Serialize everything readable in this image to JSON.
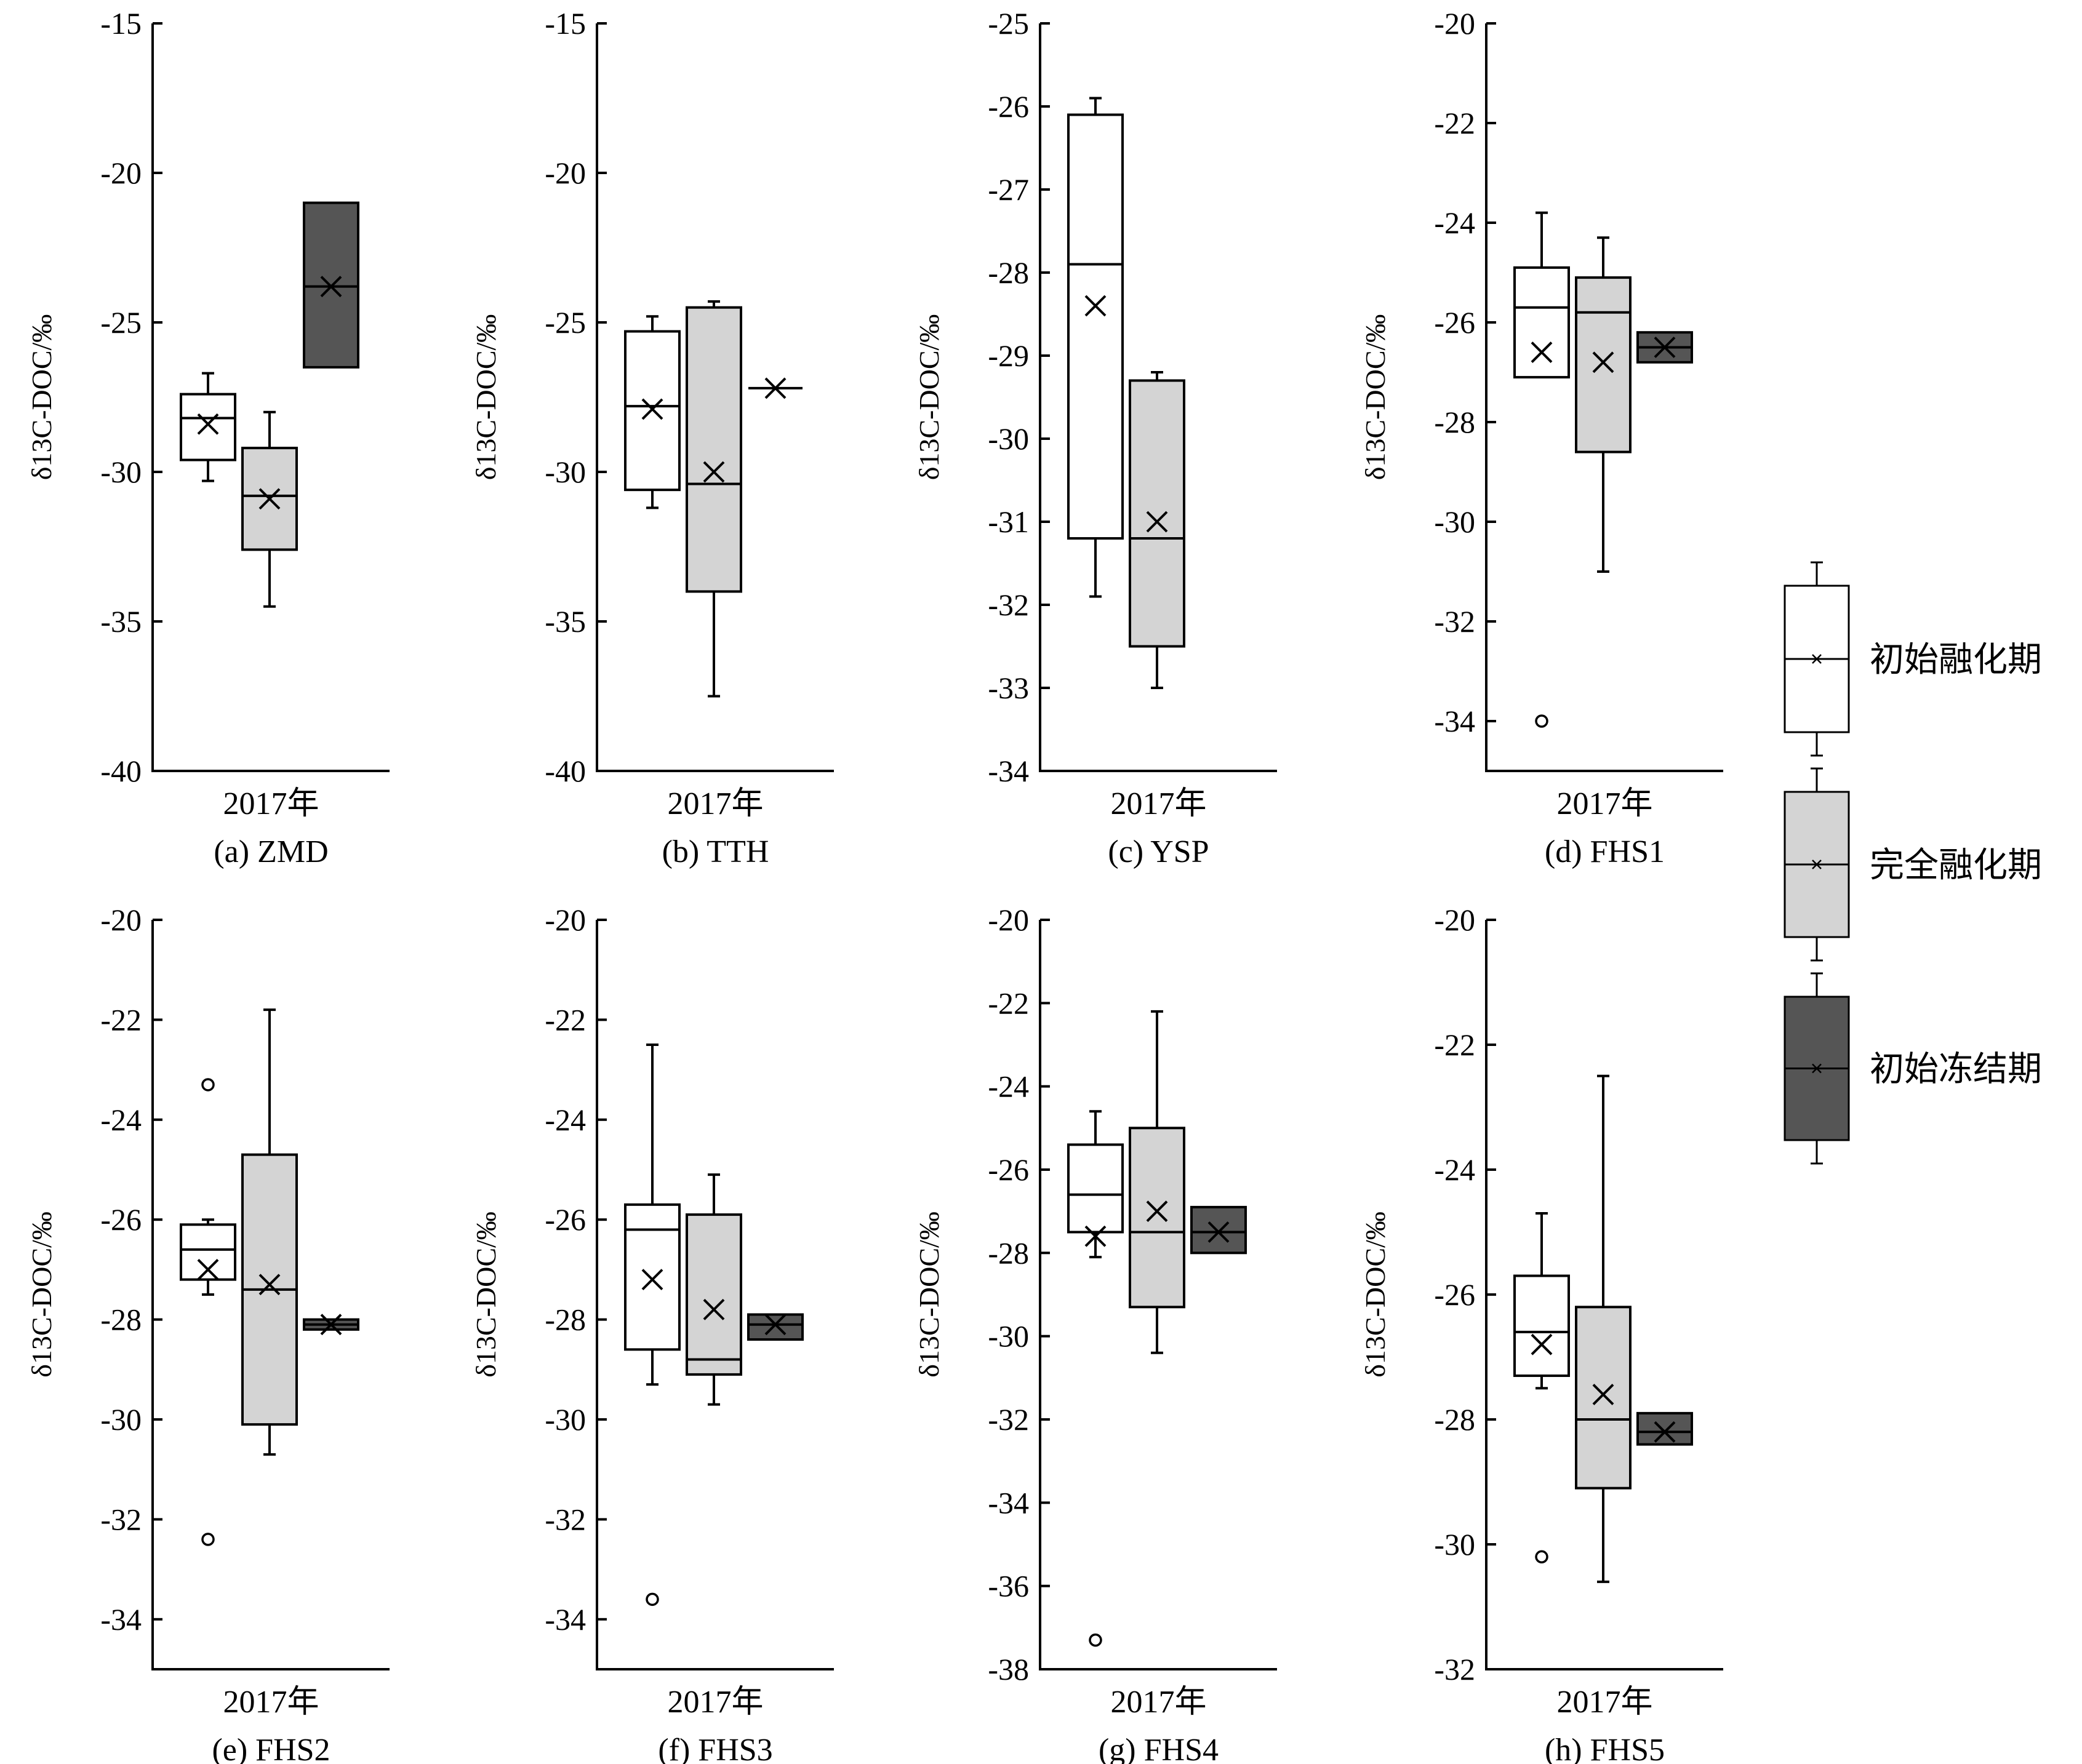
{
  "legend": [
    {
      "label": "初始融化期",
      "color": "#ffffff"
    },
    {
      "label": "完全融化期",
      "color": "#d4d4d4"
    },
    {
      "label": "初始冻结期",
      "color": "#555555"
    }
  ],
  "chart_data": [
    {
      "type": "box",
      "title": "(a) ZMD",
      "xlabel": "2017年",
      "ylabel": "δ13C-DOC/‰",
      "ylim": [
        -40,
        -15
      ],
      "yticks": [
        -40,
        -35,
        -30,
        -25,
        -20,
        -15
      ],
      "series": [
        {
          "name": "初始融化期",
          "whisker_low": -30.3,
          "q1": -29.6,
          "median": -28.2,
          "q3": -27.4,
          "whisker_high": -26.7,
          "mean": -28.4,
          "outliers": []
        },
        {
          "name": "完全融化期",
          "whisker_low": -34.5,
          "q1": -32.6,
          "median": -30.8,
          "q3": -29.2,
          "whisker_high": -28.0,
          "mean": -30.9,
          "outliers": []
        },
        {
          "name": "初始冻结期",
          "whisker_low": -26.5,
          "q1": -26.5,
          "median": -23.8,
          "q3": -21.0,
          "whisker_high": -21.0,
          "mean": -23.8,
          "outliers": []
        }
      ]
    },
    {
      "type": "box",
      "title": "(b) TTH",
      "xlabel": "2017年",
      "ylabel": "δ13C-DOC/‰",
      "ylim": [
        -40,
        -15
      ],
      "yticks": [
        -40,
        -35,
        -30,
        -25,
        -20,
        -15
      ],
      "series": [
        {
          "name": "初始融化期",
          "whisker_low": -31.2,
          "q1": -30.6,
          "median": -27.8,
          "q3": -25.3,
          "whisker_high": -24.8,
          "mean": -27.9,
          "outliers": []
        },
        {
          "name": "完全融化期",
          "whisker_low": -37.5,
          "q1": -34.0,
          "median": -30.4,
          "q3": -24.5,
          "whisker_high": -24.3,
          "mean": -30.0,
          "outliers": []
        },
        {
          "name": "初始冻结期",
          "whisker_low": -27.2,
          "q1": -27.2,
          "median": -27.2,
          "q3": -27.2,
          "whisker_high": -27.2,
          "mean": -27.2,
          "outliers": []
        }
      ]
    },
    {
      "type": "box",
      "title": "(c) YSP",
      "xlabel": "2017年",
      "ylabel": "δ13C-DOC/‰",
      "ylim": [
        -34,
        -25
      ],
      "yticks": [
        -34,
        -33,
        -32,
        -31,
        -30,
        -29,
        -28,
        -27,
        -26,
        -25
      ],
      "series": [
        {
          "name": "初始融化期",
          "whisker_low": -31.9,
          "q1": -31.2,
          "median": -27.9,
          "q3": -26.1,
          "whisker_high": -25.9,
          "mean": -28.4,
          "outliers": []
        },
        {
          "name": "完全融化期",
          "whisker_low": -33.0,
          "q1": -32.5,
          "median": -31.2,
          "q3": -29.3,
          "whisker_high": -29.2,
          "mean": -31.0,
          "outliers": []
        }
      ]
    },
    {
      "type": "box",
      "title": "(d) FHS1",
      "xlabel": "2017年",
      "ylabel": "δ13C-DOC/‰",
      "ylim": [
        -35,
        -20
      ],
      "yticks": [
        -34,
        -32,
        -30,
        -28,
        -26,
        -24,
        -22,
        -20
      ],
      "series": [
        {
          "name": "初始融化期",
          "whisker_low": -27.1,
          "q1": -27.1,
          "median": -25.7,
          "q3": -24.9,
          "whisker_high": -23.8,
          "mean": -26.6,
          "outliers": [
            -34.0
          ]
        },
        {
          "name": "完全融化期",
          "whisker_low": -31.0,
          "q1": -28.6,
          "median": -25.8,
          "q3": -25.1,
          "whisker_high": -24.3,
          "mean": -26.8,
          "outliers": []
        },
        {
          "name": "初始冻结期",
          "whisker_low": -26.8,
          "q1": -26.8,
          "median": -26.5,
          "q3": -26.2,
          "whisker_high": -26.2,
          "mean": -26.5,
          "outliers": []
        }
      ]
    },
    {
      "type": "box",
      "title": "(e)  FHS2",
      "xlabel": "2017年",
      "ylabel": "δ13C-DOC/‰",
      "ylim": [
        -35,
        -20
      ],
      "yticks": [
        -34,
        -32,
        -30,
        -28,
        -26,
        -24,
        -22,
        -20
      ],
      "series": [
        {
          "name": "初始融化期",
          "whisker_low": -27.5,
          "q1": -27.2,
          "median": -26.6,
          "q3": -26.1,
          "whisker_high": -26.0,
          "mean": -27.0,
          "outliers": [
            -23.3,
            -32.4
          ]
        },
        {
          "name": "完全融化期",
          "whisker_low": -30.7,
          "q1": -30.1,
          "median": -27.4,
          "q3": -24.7,
          "whisker_high": -21.8,
          "mean": -27.3,
          "outliers": []
        },
        {
          "name": "初始冻结期",
          "whisker_low": -28.2,
          "q1": -28.2,
          "median": -28.1,
          "q3": -28.0,
          "whisker_high": -28.0,
          "mean": -28.1,
          "outliers": []
        }
      ]
    },
    {
      "type": "box",
      "title": "(f)  FHS3",
      "xlabel": "2017年",
      "ylabel": "δ13C-DOC/‰",
      "ylim": [
        -35,
        -20
      ],
      "yticks": [
        -34,
        -32,
        -30,
        -28,
        -26,
        -24,
        -22,
        -20
      ],
      "series": [
        {
          "name": "初始融化期",
          "whisker_low": -29.3,
          "q1": -28.6,
          "median": -26.2,
          "q3": -25.7,
          "whisker_high": -22.5,
          "mean": -27.2,
          "outliers": [
            -33.6
          ]
        },
        {
          "name": "完全融化期",
          "whisker_low": -29.7,
          "q1": -29.1,
          "median": -28.8,
          "q3": -25.9,
          "whisker_high": -25.1,
          "mean": -27.8,
          "outliers": []
        },
        {
          "name": "初始冻结期",
          "whisker_low": -28.4,
          "q1": -28.4,
          "median": -28.1,
          "q3": -27.9,
          "whisker_high": -27.9,
          "mean": -28.1,
          "outliers": []
        }
      ]
    },
    {
      "type": "box",
      "title": "(g)  FHS4",
      "xlabel": "2017年",
      "ylabel": "δ13C-DOC/‰",
      "ylim": [
        -38,
        -20
      ],
      "yticks": [
        -38,
        -36,
        -34,
        -32,
        -30,
        -28,
        -26,
        -24,
        -22,
        -20
      ],
      "series": [
        {
          "name": "初始融化期",
          "whisker_low": -28.1,
          "q1": -27.5,
          "median": -26.6,
          "q3": -25.4,
          "whisker_high": -24.6,
          "mean": -27.6,
          "outliers": [
            -37.3
          ]
        },
        {
          "name": "完全融化期",
          "whisker_low": -30.4,
          "q1": -29.3,
          "median": -27.5,
          "q3": -25.0,
          "whisker_high": -22.2,
          "mean": -27.0,
          "outliers": []
        },
        {
          "name": "初始冻结期",
          "whisker_low": -28.0,
          "q1": -28.0,
          "median": -27.5,
          "q3": -26.9,
          "whisker_high": -26.9,
          "mean": -27.5,
          "outliers": []
        }
      ]
    },
    {
      "type": "box",
      "title": "(h) FHS5",
      "xlabel": "2017年",
      "ylabel": "δ13C-DOC/‰",
      "ylim": [
        -32,
        -20
      ],
      "yticks": [
        -32,
        -30,
        -28,
        -26,
        -24,
        -22,
        -20
      ],
      "series": [
        {
          "name": "初始融化期",
          "whisker_low": -27.5,
          "q1": -27.3,
          "median": -26.6,
          "q3": -25.7,
          "whisker_high": -24.7,
          "mean": -26.8,
          "outliers": [
            -30.2
          ]
        },
        {
          "name": "完全融化期",
          "whisker_low": -30.6,
          "q1": -29.1,
          "median": -28.0,
          "q3": -26.2,
          "whisker_high": -22.5,
          "mean": -27.6,
          "outliers": []
        },
        {
          "name": "初始冻结期",
          "whisker_low": -28.4,
          "q1": -28.4,
          "median": -28.2,
          "q3": -27.9,
          "whisker_high": -27.9,
          "mean": -28.2,
          "outliers": []
        }
      ]
    }
  ]
}
